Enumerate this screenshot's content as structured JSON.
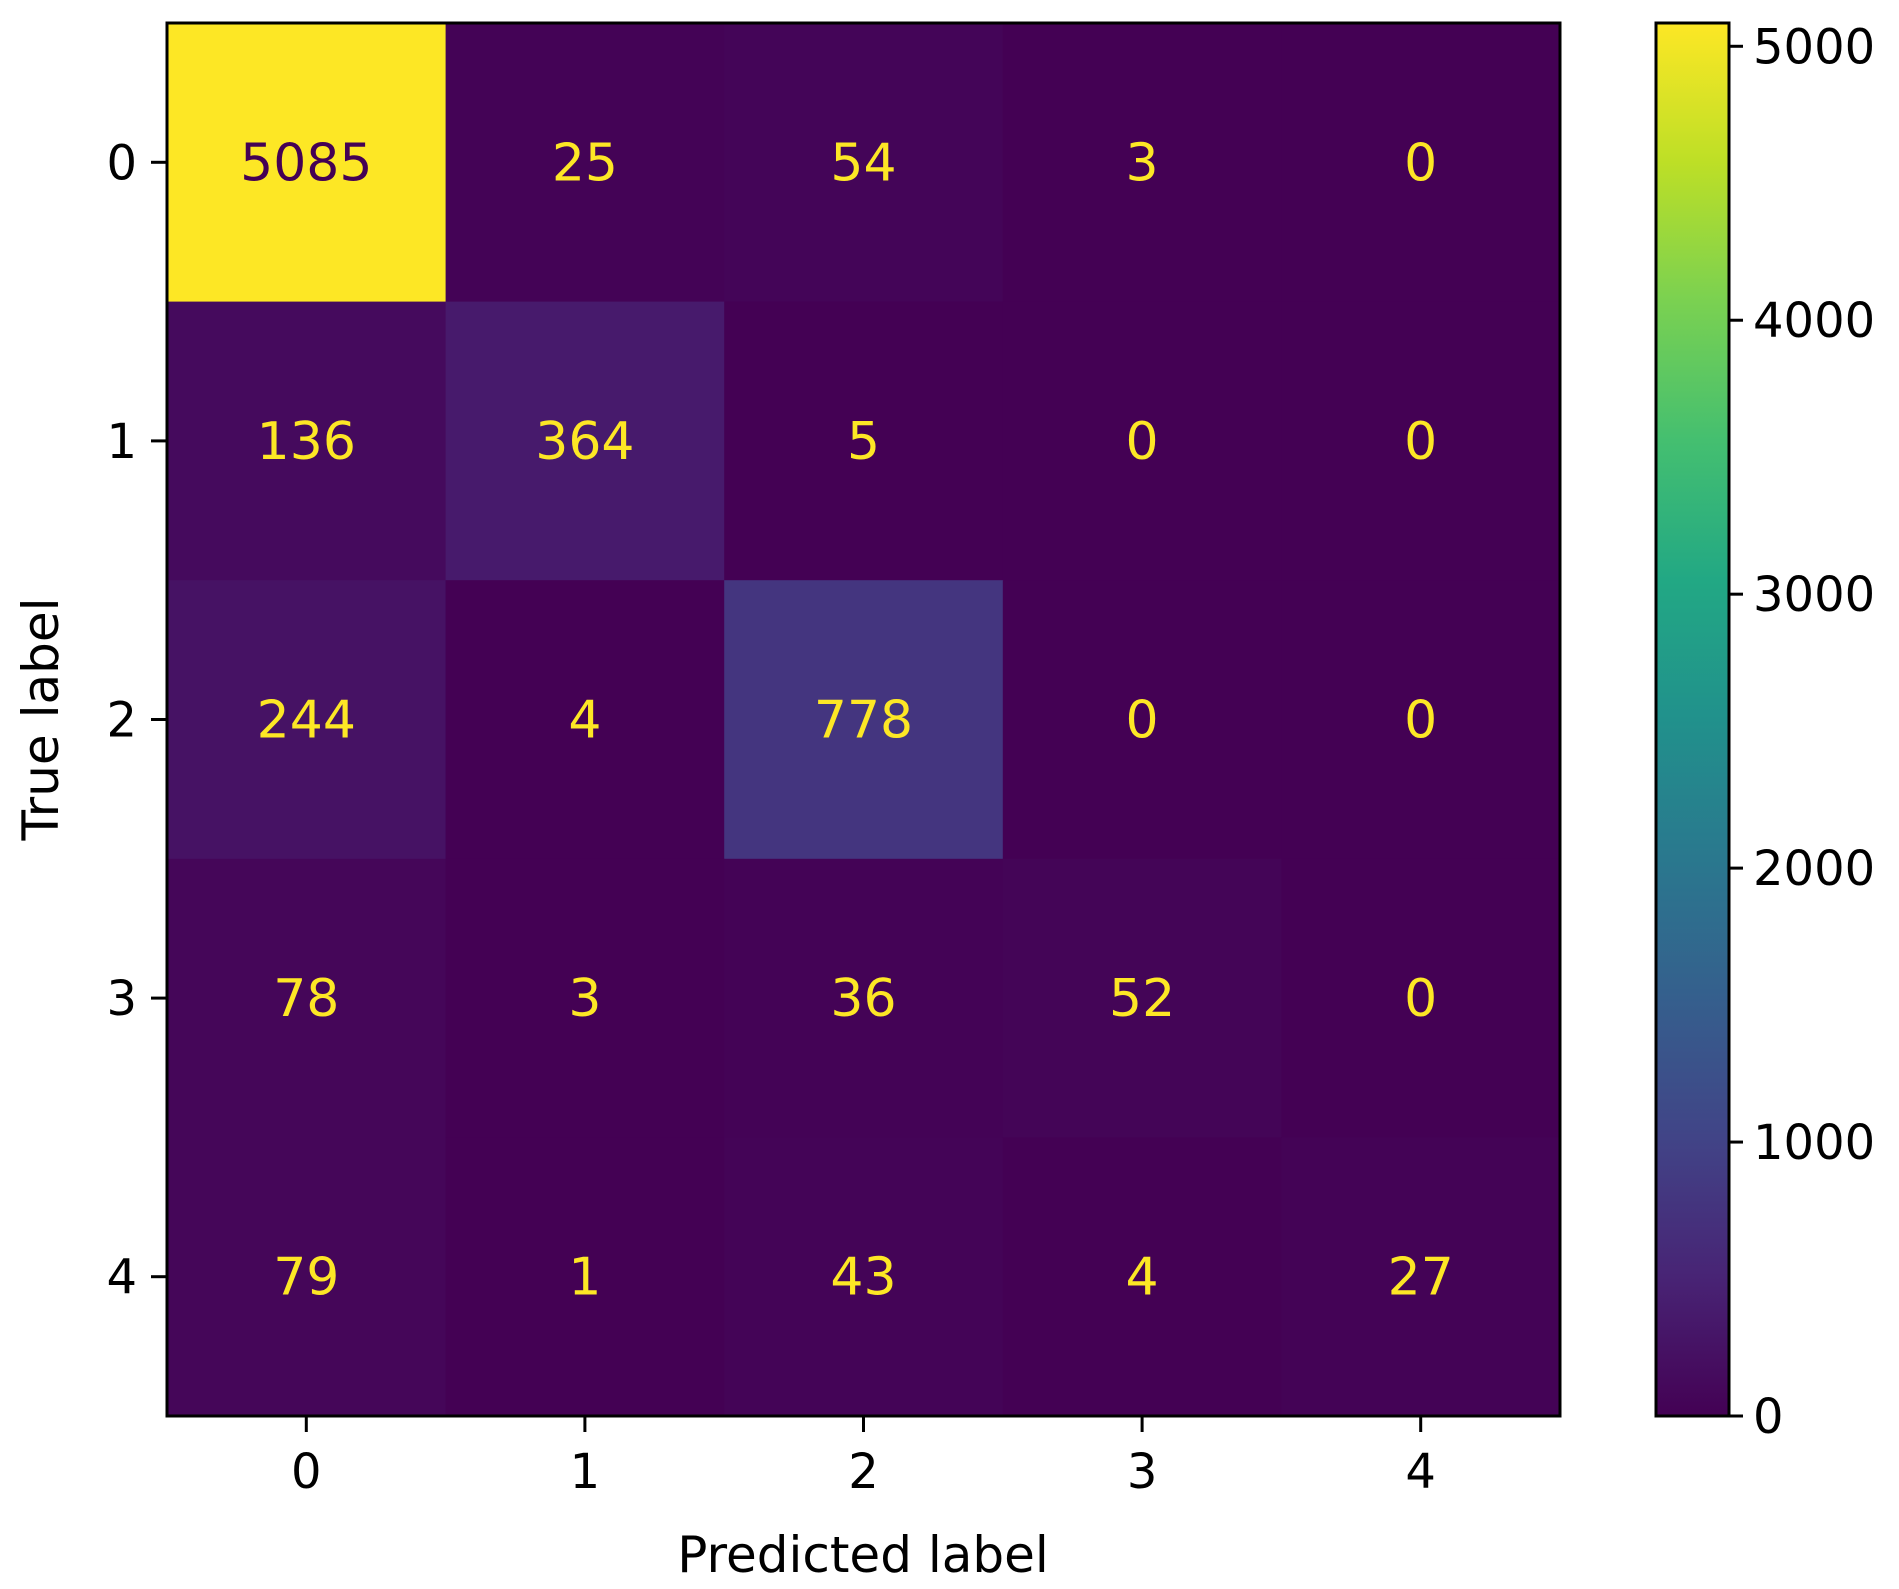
{
  "chart_data": {
    "type": "heatmap",
    "title": "",
    "xlabel": "Predicted label",
    "ylabel": "True label",
    "x_categories": [
      "0",
      "1",
      "2",
      "3",
      "4"
    ],
    "y_categories": [
      "0",
      "1",
      "2",
      "3",
      "4"
    ],
    "values": [
      [
        5085,
        25,
        54,
        3,
        0
      ],
      [
        136,
        364,
        5,
        0,
        0
      ],
      [
        244,
        4,
        778,
        0,
        0
      ],
      [
        78,
        3,
        36,
        52,
        0
      ],
      [
        79,
        1,
        43,
        4,
        27
      ]
    ],
    "colormap": "viridis",
    "colorbar": {
      "range": [
        0,
        5085
      ],
      "ticks": [
        0,
        1000,
        2000,
        3000,
        4000,
        5000
      ]
    },
    "text_colors": {
      "on_dark": "#fde725",
      "on_light": "#440154"
    },
    "grid": false
  }
}
